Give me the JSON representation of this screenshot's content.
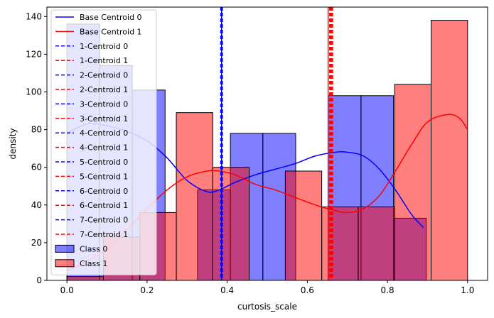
{
  "chart_data": {
    "type": "bar",
    "title": "",
    "xlabel": "curtosis_scale",
    "ylabel": "density",
    "xlim": [
      -0.05,
      1.05
    ],
    "ylim": [
      0,
      145
    ],
    "xticks": [
      0.0,
      0.2,
      0.4,
      0.6,
      0.8,
      1.0
    ],
    "xtick_labels": [
      "0.0",
      "0.2",
      "0.4",
      "0.6",
      "0.8",
      "1.0"
    ],
    "yticks": [
      0,
      20,
      40,
      60,
      80,
      100,
      120,
      140
    ],
    "ytick_labels": [
      "0",
      "20",
      "40",
      "60",
      "80",
      "100",
      "120",
      "140"
    ],
    "grid": false,
    "legend_position": "top-left",
    "histograms": [
      {
        "name": "Class 0",
        "color": "#0000ff",
        "bins": [
          {
            "x0": 0.0,
            "x1": 0.082,
            "count": 136
          },
          {
            "x0": 0.082,
            "x1": 0.163,
            "count": 114
          },
          {
            "x0": 0.163,
            "x1": 0.245,
            "count": 101
          },
          {
            "x0": 0.245,
            "x1": 0.326,
            "count": 0
          },
          {
            "x0": 0.326,
            "x1": 0.408,
            "count": 48
          },
          {
            "x0": 0.408,
            "x1": 0.489,
            "count": 78
          },
          {
            "x0": 0.489,
            "x1": 0.571,
            "count": 78
          },
          {
            "x0": 0.571,
            "x1": 0.652,
            "count": 0
          },
          {
            "x0": 0.652,
            "x1": 0.734,
            "count": 98
          },
          {
            "x0": 0.734,
            "x1": 0.815,
            "count": 98
          },
          {
            "x0": 0.815,
            "x1": 0.897,
            "count": 33
          }
        ]
      },
      {
        "name": "Class 1",
        "color": "#ff0000",
        "bins": [
          {
            "x0": 0.0,
            "x1": 0.091,
            "count": 2
          },
          {
            "x0": 0.091,
            "x1": 0.182,
            "count": 23
          },
          {
            "x0": 0.182,
            "x1": 0.273,
            "count": 36
          },
          {
            "x0": 0.273,
            "x1": 0.364,
            "count": 89
          },
          {
            "x0": 0.364,
            "x1": 0.455,
            "count": 60
          },
          {
            "x0": 0.455,
            "x1": 0.545,
            "count": 0
          },
          {
            "x0": 0.545,
            "x1": 0.636,
            "count": 58
          },
          {
            "x0": 0.636,
            "x1": 0.727,
            "count": 39
          },
          {
            "x0": 0.727,
            "x1": 0.818,
            "count": 39
          },
          {
            "x0": 0.818,
            "x1": 0.909,
            "count": 104
          },
          {
            "x0": 0.909,
            "x1": 1.0,
            "count": 138
          }
        ]
      }
    ],
    "kde": [
      {
        "name": "Class 0",
        "color": "#0000ff",
        "x": [
          0.0,
          0.05,
          0.1,
          0.15,
          0.2,
          0.25,
          0.3,
          0.35,
          0.38,
          0.42,
          0.47,
          0.52,
          0.57,
          0.62,
          0.67,
          0.7,
          0.74,
          0.78,
          0.82,
          0.86,
          0.89
        ],
        "y": [
          78,
          83,
          82,
          79,
          74,
          65,
          53,
          47,
          48,
          52,
          56,
          59,
          62,
          66,
          68,
          68,
          66,
          59,
          48,
          35,
          28
        ]
      },
      {
        "name": "Class 1",
        "color": "#ff0000",
        "x": [
          0.0,
          0.05,
          0.1,
          0.15,
          0.2,
          0.25,
          0.3,
          0.35,
          0.38,
          0.42,
          0.47,
          0.52,
          0.57,
          0.62,
          0.67,
          0.7,
          0.74,
          0.78,
          0.82,
          0.86,
          0.9,
          0.95,
          0.98,
          1.0
        ],
        "y": [
          5,
          10,
          17,
          27,
          38,
          48,
          55,
          58,
          58,
          56,
          51,
          48,
          44,
          40,
          37,
          36,
          38,
          45,
          58,
          72,
          84,
          88,
          86,
          80
        ]
      }
    ],
    "centroid_lines": [
      {
        "name": "Base Centroid 0",
        "x": 0.386,
        "color": "#0000ff",
        "style": "solid"
      },
      {
        "name": "Base Centroid 1",
        "x": 0.652,
        "color": "#ff0000",
        "style": "solid"
      },
      {
        "name": "1-Centroid 0",
        "x": 0.384,
        "color": "#0000ff",
        "style": "dashed"
      },
      {
        "name": "1-Centroid 1",
        "x": 0.656,
        "color": "#ff0000",
        "style": "dashed"
      },
      {
        "name": "2-Centroid 0",
        "x": 0.386,
        "color": "#0000ff",
        "style": "dashed"
      },
      {
        "name": "2-Centroid 1",
        "x": 0.656,
        "color": "#ff0000",
        "style": "dashed"
      },
      {
        "name": "3-Centroid 0",
        "x": 0.388,
        "color": "#0000ff",
        "style": "dashed"
      },
      {
        "name": "3-Centroid 1",
        "x": 0.658,
        "color": "#ff0000",
        "style": "dashed"
      },
      {
        "name": "4-Centroid 0",
        "x": 0.387,
        "color": "#0000ff",
        "style": "dashed"
      },
      {
        "name": "4-Centroid 1",
        "x": 0.657,
        "color": "#ff0000",
        "style": "dashed"
      },
      {
        "name": "5-Centroid 0",
        "x": 0.386,
        "color": "#0000ff",
        "style": "dashed"
      },
      {
        "name": "5-Centroid 1",
        "x": 0.659,
        "color": "#ff0000",
        "style": "dashed"
      },
      {
        "name": "6-Centroid 0",
        "x": 0.385,
        "color": "#0000ff",
        "style": "dashed"
      },
      {
        "name": "6-Centroid 1",
        "x": 0.661,
        "color": "#ff0000",
        "style": "dashed"
      },
      {
        "name": "7-Centroid 0",
        "x": 0.386,
        "color": "#0000ff",
        "style": "dashed"
      },
      {
        "name": "7-Centroid 1",
        "x": 0.663,
        "color": "#ff0000",
        "style": "dashed"
      }
    ]
  }
}
